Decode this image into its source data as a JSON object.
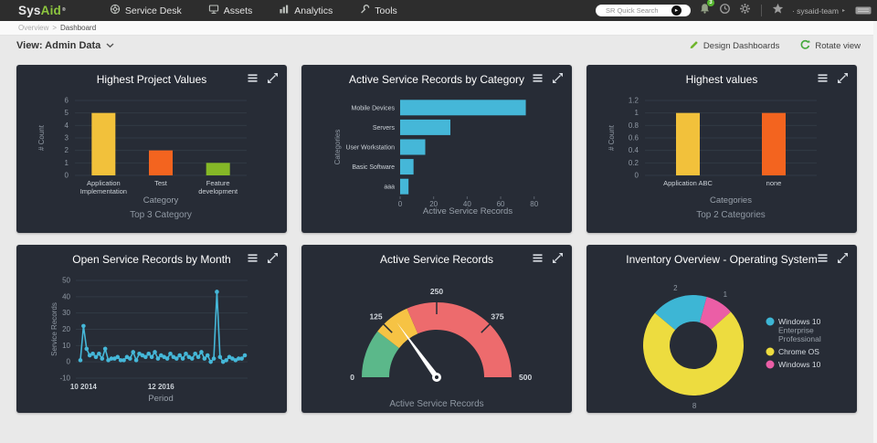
{
  "topbar": {
    "logo_sys": "Sys",
    "logo_aid": "Aid",
    "logo_reg": "®",
    "nav": [
      {
        "label": "Service Desk"
      },
      {
        "label": "Assets"
      },
      {
        "label": "Analytics"
      },
      {
        "label": "Tools"
      }
    ],
    "search_placeholder": "SR Quick Search",
    "go_arrow": "▸",
    "notification_count": "3",
    "user": "· sysaid-team",
    "user_arrow": "▸"
  },
  "breadcrumb": {
    "parent": "Overview",
    "separator": ">",
    "current": "Dashboard"
  },
  "viewbar": {
    "view_label": "View: Admin Data",
    "design_label": "Design Dashboards",
    "rotate_label": "Rotate view"
  },
  "colors": {
    "brand_green": "#8dc63f",
    "panel_bg": "#272c36",
    "topbar_bg": "#2d2d2d",
    "accent_cyan": "#45b7d8"
  },
  "charts": [
    {
      "title": "Highest Project Values",
      "chart_data": {
        "type": "bar",
        "categories": [
          "Application Implementation",
          "Test",
          "Feature development"
        ],
        "values": [
          5,
          2,
          1
        ],
        "bar_colors": [
          "#f2c13b",
          "#f3641f",
          "#85b827"
        ],
        "yticks": [
          0,
          1,
          2,
          3,
          4,
          5,
          6
        ],
        "ylim": [
          0,
          6
        ],
        "ylabel": "# Count",
        "xlabel": "Category",
        "subtitle": "Top 3 Category"
      }
    },
    {
      "title": "Active Service Records by Category",
      "chart_data": {
        "type": "hbar",
        "categories": [
          "Mobile Devices",
          "Servers",
          "User Workstation",
          "Basic Software",
          "aaa"
        ],
        "values": [
          75,
          30,
          15,
          8,
          5
        ],
        "bar_color": "#45b7d8",
        "xticks": [
          0,
          20,
          40,
          60,
          80
        ],
        "xlim": [
          0,
          88
        ],
        "xlabel": "Active Service Records",
        "ylabel": "Categories"
      }
    },
    {
      "title": "Highest values",
      "chart_data": {
        "type": "bar",
        "categories": [
          "Application ABC",
          "none"
        ],
        "values": [
          1,
          1
        ],
        "bar_colors": [
          "#f2c13b",
          "#f3641f"
        ],
        "yticks": [
          0,
          0.2,
          0.4,
          0.6,
          0.8,
          1,
          1.2
        ],
        "ylim": [
          0,
          1.2
        ],
        "ylabel": "# Count",
        "xlabel": "Categories",
        "subtitle": "Top 2 Categories"
      }
    },
    {
      "title": "Open Service Records by Month",
      "chart_data": {
        "type": "line",
        "values": [
          1,
          22,
          8,
          4,
          5,
          3,
          5,
          2,
          8,
          1,
          2,
          2,
          3,
          1,
          1,
          3,
          2,
          6,
          1,
          5,
          4,
          3,
          5,
          3,
          6,
          2,
          4,
          3,
          2,
          5,
          3,
          2,
          4,
          2,
          5,
          3,
          2,
          5,
          3,
          6,
          2,
          4,
          0,
          2,
          43,
          3,
          0,
          1,
          3,
          2,
          1,
          2,
          2,
          4
        ],
        "line_color": "#45b7d8",
        "yticks": [
          -10,
          0,
          10,
          20,
          30,
          40,
          50
        ],
        "ylim": [
          -10,
          50
        ],
        "xticks": [
          {
            "label": "10 2014",
            "index": 1
          },
          {
            "label": "12 2016",
            "index": 26
          }
        ],
        "ylabel": "Service Records",
        "xlabel": "Period"
      }
    },
    {
      "title": "Active Service Records",
      "chart_data": {
        "type": "gauge",
        "min": 0,
        "max": 500,
        "ticks": [
          0,
          125,
          250,
          375,
          500
        ],
        "zones": [
          {
            "to": 105,
            "color": "#5bb88a"
          },
          {
            "to": 185,
            "color": "#f6c344"
          },
          {
            "to": 500,
            "color": "#ed6b6d"
          }
        ],
        "value": 150,
        "label": "Active Service Records"
      }
    },
    {
      "title": "Inventory Overview - Operating System",
      "chart_data": {
        "type": "donut",
        "start_angle": -50,
        "slices": [
          {
            "label": "Windows 10 Enterprise Professional",
            "value": 2,
            "color": "#3db6d5"
          },
          {
            "label": "Windows 10",
            "value": 1,
            "color": "#eb5ea6"
          },
          {
            "label": "Chrome OS",
            "value": 8,
            "color": "#eddc3f"
          }
        ],
        "legend_order": [
          0,
          2,
          1
        ]
      }
    }
  ]
}
